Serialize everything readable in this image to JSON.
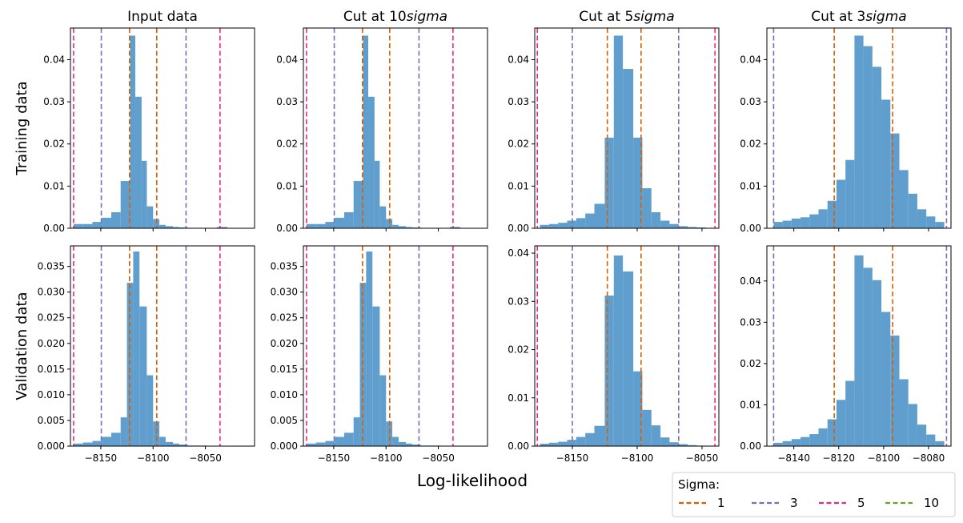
{
  "figure": {
    "xlabel": "Log-likelihood",
    "row_labels": [
      "Training data",
      "Validation data"
    ],
    "column_titles": [
      "Input data",
      "Cut at 10",
      "Cut at 5",
      "Cut at 3"
    ],
    "title_math_suffix": "sigma"
  },
  "legend": {
    "title": "Sigma:",
    "entries": [
      {
        "label": "1",
        "color": "#d95f02"
      },
      {
        "label": "3",
        "color": "#7570b3"
      },
      {
        "label": "5",
        "color": "#e7298a"
      },
      {
        "label": "10",
        "color": "#66a61e"
      }
    ]
  },
  "colors": {
    "bars": "#5f9ecd",
    "sigma_1": "#d95f02",
    "sigma_3": "#7570b3",
    "sigma_5": "#e7298a",
    "sigma_10": "#66a61e"
  },
  "chart_data": [
    {
      "type": "bar",
      "title": "Input data",
      "row": "Training data",
      "xlim": [
        -8179,
        -8003
      ],
      "ylim": [
        0,
        0.0475
      ],
      "xticks": [
        -8150,
        -8100,
        -8050
      ],
      "yticks": [
        0,
        0.01,
        0.02,
        0.03,
        0.04
      ],
      "ytick_labels": [
        "0.00",
        "0.01",
        "0.02",
        "0.03",
        "0.04"
      ],
      "show_xtick_labels": false,
      "bin_edges": [
        -8176,
        -8167,
        -8158,
        -8149,
        -8140,
        -8131,
        -8122,
        -8117,
        -8111,
        -8106,
        -8100,
        -8094,
        -8088,
        -8081,
        -8075,
        -8067,
        -8059,
        -8049,
        -8039,
        -8029,
        -8019,
        -8009
      ],
      "values": [
        0.001,
        0.001,
        0.0015,
        0.0025,
        0.0038,
        0.0112,
        0.0457,
        0.0312,
        0.016,
        0.0052,
        0.0022,
        0.0008,
        0.0005,
        0.0003,
        0.0002,
        0.0001,
        0.0001,
        0.0001,
        0.0003,
        0,
        0
      ],
      "sigma_lines": [
        {
          "sigma": 1,
          "x": [
            -8122.5,
            -8096.5
          ]
        },
        {
          "sigma": 3,
          "x": [
            -8149.5,
            -8068.5
          ]
        },
        {
          "sigma": 5,
          "x": [
            -8176,
            -8036
          ]
        }
      ]
    },
    {
      "type": "bar",
      "title": "Cut at 10",
      "row": "Training data",
      "xlim": [
        -8179,
        -8003
      ],
      "ylim": [
        0,
        0.0475
      ],
      "xticks": [
        -8150,
        -8100,
        -8050
      ],
      "yticks": [
        0,
        0.01,
        0.02,
        0.03,
        0.04
      ],
      "ytick_labels": [
        "0.00",
        "0.01",
        "0.02",
        "0.03",
        "0.04"
      ],
      "show_xtick_labels": false,
      "bin_edges": [
        -8176,
        -8167,
        -8158,
        -8149,
        -8140,
        -8131,
        -8122,
        -8117,
        -8111,
        -8106,
        -8100,
        -8094,
        -8088,
        -8081,
        -8075,
        -8067,
        -8059,
        -8049,
        -8039,
        -8029,
        -8019,
        -8009
      ],
      "values": [
        0.001,
        0.001,
        0.0015,
        0.0025,
        0.0038,
        0.0112,
        0.0457,
        0.0312,
        0.016,
        0.0052,
        0.0022,
        0.0008,
        0.0005,
        0.0003,
        0.0002,
        0.0001,
        0.0001,
        0.0001,
        0.0003,
        0,
        0
      ],
      "sigma_lines": [
        {
          "sigma": 1,
          "x": [
            -8122.5,
            -8096.5
          ]
        },
        {
          "sigma": 3,
          "x": [
            -8149.5,
            -8068.5
          ]
        },
        {
          "sigma": 5,
          "x": [
            -8176,
            -8036
          ]
        }
      ]
    },
    {
      "type": "bar",
      "title": "Cut at 5",
      "row": "Training data",
      "xlim": [
        -8179,
        -8037
      ],
      "ylim": [
        0,
        0.0475
      ],
      "xticks": [
        -8150,
        -8100,
        -8050
      ],
      "yticks": [
        0,
        0.01,
        0.02,
        0.03,
        0.04
      ],
      "ytick_labels": [
        "0.00",
        "0.01",
        "0.02",
        "0.03",
        "0.04"
      ],
      "show_xtick_labels": false,
      "bin_edges": [
        -8175,
        -8168,
        -8161,
        -8154,
        -8147,
        -8140,
        -8133,
        -8125,
        -8118,
        -8111,
        -8103,
        -8096,
        -8089,
        -8082,
        -8075,
        -8068,
        -8061,
        -8054,
        -8047,
        -8040
      ],
      "values": [
        0.0008,
        0.001,
        0.0013,
        0.0018,
        0.0024,
        0.0035,
        0.0058,
        0.0215,
        0.0457,
        0.0378,
        0.0215,
        0.0095,
        0.0038,
        0.0018,
        0.001,
        0.0005,
        0.0003,
        0.0002,
        0.0001
      ],
      "sigma_lines": [
        {
          "sigma": 1,
          "x": [
            -8123,
            -8097
          ]
        },
        {
          "sigma": 3,
          "x": [
            -8150,
            -8068
          ]
        },
        {
          "sigma": 5,
          "x": [
            -8177,
            -8040
          ]
        }
      ]
    },
    {
      "type": "bar",
      "title": "Cut at 3",
      "row": "Training data",
      "xlim": [
        -8152,
        -8070
      ],
      "ylim": [
        0,
        0.0475
      ],
      "xticks": [
        -8140,
        -8120,
        -8100,
        -8080
      ],
      "yticks": [
        0,
        0.01,
        0.02,
        0.03,
        0.04
      ],
      "ytick_labels": [
        "0.00",
        "0.01",
        "0.02",
        "0.03",
        "0.04"
      ],
      "show_xtick_labels": false,
      "bin_edges": [
        -8149,
        -8145,
        -8141,
        -8137,
        -8133,
        -8129,
        -8125,
        -8121,
        -8117,
        -8113,
        -8109,
        -8105,
        -8101,
        -8097,
        -8093,
        -8089,
        -8085,
        -8081,
        -8077,
        -8073
      ],
      "values": [
        0.0015,
        0.0018,
        0.0023,
        0.0026,
        0.0033,
        0.0045,
        0.0065,
        0.0115,
        0.0162,
        0.0457,
        0.0432,
        0.0383,
        0.0305,
        0.0225,
        0.0138,
        0.0082,
        0.0045,
        0.0028,
        0.0015
      ],
      "sigma_lines": [
        {
          "sigma": 1,
          "x": [
            -8122,
            -8096
          ]
        },
        {
          "sigma": 3,
          "x": [
            -8149,
            -8072
          ]
        }
      ]
    },
    {
      "type": "bar",
      "title": "",
      "row": "Validation data",
      "xlim": [
        -8179,
        -8003
      ],
      "ylim": [
        0,
        0.039
      ],
      "xticks": [
        -8150,
        -8100,
        -8050
      ],
      "xtick_labels": [
        "−8150",
        "−8100",
        "−8050"
      ],
      "yticks": [
        0,
        0.005,
        0.01,
        0.015,
        0.02,
        0.025,
        0.03,
        0.035
      ],
      "ytick_labels": [
        "0.000",
        "0.005",
        "0.010",
        "0.015",
        "0.020",
        "0.025",
        "0.030",
        "0.035"
      ],
      "show_xtick_labels": true,
      "bin_edges": [
        -8176,
        -8167,
        -8158,
        -8149,
        -8140,
        -8131,
        -8125,
        -8119,
        -8113,
        -8106,
        -8100,
        -8094,
        -8088,
        -8081,
        -8075,
        -8067,
        -8059,
        -8049,
        -8039,
        -8029,
        -8019,
        -8009
      ],
      "values": [
        0.0005,
        0.0007,
        0.001,
        0.0018,
        0.0026,
        0.0056,
        0.0318,
        0.0379,
        0.0272,
        0.0138,
        0.0048,
        0.0018,
        0.0008,
        0.0005,
        0.0003,
        0.0001,
        0.0001,
        0,
        0,
        0,
        0
      ],
      "sigma_lines": [
        {
          "sigma": 1,
          "x": [
            -8122.5,
            -8096.5
          ]
        },
        {
          "sigma": 3,
          "x": [
            -8149.5,
            -8068.5
          ]
        },
        {
          "sigma": 5,
          "x": [
            -8176,
            -8036
          ]
        }
      ]
    },
    {
      "type": "bar",
      "title": "",
      "row": "Validation data",
      "xlim": [
        -8179,
        -8003
      ],
      "ylim": [
        0,
        0.039
      ],
      "xticks": [
        -8150,
        -8100,
        -8050
      ],
      "xtick_labels": [
        "−8150",
        "−8100",
        "−8050"
      ],
      "yticks": [
        0,
        0.005,
        0.01,
        0.015,
        0.02,
        0.025,
        0.03,
        0.035
      ],
      "ytick_labels": [
        "0.000",
        "0.005",
        "0.010",
        "0.015",
        "0.020",
        "0.025",
        "0.030",
        "0.035"
      ],
      "show_xtick_labels": true,
      "bin_edges": [
        -8176,
        -8167,
        -8158,
        -8149,
        -8140,
        -8131,
        -8125,
        -8119,
        -8113,
        -8106,
        -8100,
        -8094,
        -8088,
        -8081,
        -8075,
        -8067,
        -8059,
        -8049,
        -8039,
        -8029,
        -8019,
        -8009
      ],
      "values": [
        0.0005,
        0.0007,
        0.001,
        0.0018,
        0.0026,
        0.0056,
        0.0318,
        0.0379,
        0.0272,
        0.0138,
        0.0048,
        0.0018,
        0.0008,
        0.0005,
        0.0003,
        0.0001,
        0.0001,
        0,
        0,
        0,
        0
      ],
      "sigma_lines": [
        {
          "sigma": 1,
          "x": [
            -8122.5,
            -8096.5
          ]
        },
        {
          "sigma": 3,
          "x": [
            -8149.5,
            -8068.5
          ]
        },
        {
          "sigma": 5,
          "x": [
            -8176,
            -8036
          ]
        }
      ]
    },
    {
      "type": "bar",
      "title": "",
      "row": "Validation data",
      "xlim": [
        -8179,
        -8037
      ],
      "ylim": [
        0,
        0.0415
      ],
      "xticks": [
        -8150,
        -8100,
        -8050
      ],
      "xtick_labels": [
        "−8150",
        "−8100",
        "−8050"
      ],
      "yticks": [
        0,
        0.01,
        0.02,
        0.03,
        0.04
      ],
      "ytick_labels": [
        "0.00",
        "0.01",
        "0.02",
        "0.03",
        "0.04"
      ],
      "show_xtick_labels": true,
      "bin_edges": [
        -8175,
        -8168,
        -8161,
        -8154,
        -8147,
        -8140,
        -8133,
        -8125,
        -8118,
        -8111,
        -8103,
        -8096,
        -8089,
        -8082,
        -8075,
        -8068,
        -8061,
        -8054,
        -8047,
        -8040
      ],
      "values": [
        0.0005,
        0.0007,
        0.0009,
        0.0013,
        0.0019,
        0.0027,
        0.0042,
        0.0312,
        0.0395,
        0.0362,
        0.0155,
        0.0075,
        0.0043,
        0.0018,
        0.0008,
        0.0004,
        0.0002,
        0.0001,
        0
      ],
      "sigma_lines": [
        {
          "sigma": 1,
          "x": [
            -8123,
            -8097
          ]
        },
        {
          "sigma": 3,
          "x": [
            -8150,
            -8068
          ]
        },
        {
          "sigma": 5,
          "x": [
            -8177,
            -8040
          ]
        }
      ]
    },
    {
      "type": "bar",
      "title": "",
      "row": "Validation data",
      "xlim": [
        -8152,
        -8070
      ],
      "ylim": [
        0,
        0.0485
      ],
      "xticks": [
        -8140,
        -8120,
        -8100,
        -8080
      ],
      "xtick_labels": [
        "−8140",
        "−8120",
        "−8100",
        "−8080"
      ],
      "yticks": [
        0,
        0.01,
        0.02,
        0.03,
        0.04
      ],
      "ytick_labels": [
        "0.00",
        "0.01",
        "0.02",
        "0.03",
        "0.04"
      ],
      "show_xtick_labels": true,
      "bin_edges": [
        -8149,
        -8145,
        -8141,
        -8137,
        -8133,
        -8129,
        -8125,
        -8121,
        -8117,
        -8113,
        -8109,
        -8105,
        -8101,
        -8097,
        -8093,
        -8089,
        -8085,
        -8081,
        -8077,
        -8073
      ],
      "values": [
        0.0008,
        0.0012,
        0.0017,
        0.0022,
        0.0029,
        0.0043,
        0.0065,
        0.0112,
        0.0158,
        0.0462,
        0.0432,
        0.0402,
        0.0325,
        0.0268,
        0.0162,
        0.0102,
        0.0052,
        0.0028,
        0.0012
      ],
      "sigma_lines": [
        {
          "sigma": 1,
          "x": [
            -8122,
            -8096
          ]
        },
        {
          "sigma": 3,
          "x": [
            -8149,
            -8072
          ]
        }
      ]
    }
  ]
}
